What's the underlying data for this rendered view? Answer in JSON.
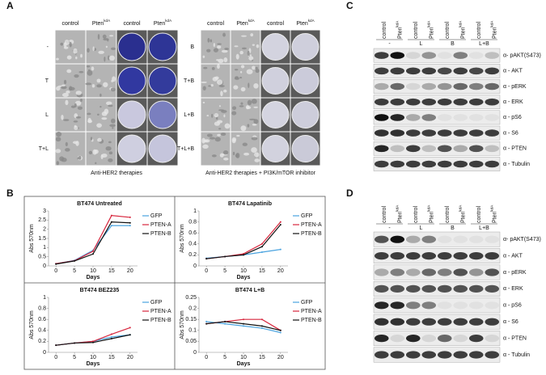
{
  "panel_labels": [
    "A",
    "B",
    "C",
    "D"
  ],
  "panel_a": {
    "groups": [
      {
        "columns": [
          {
            "text": "control"
          },
          {
            "text": "Pten",
            "sup": "kdA"
          },
          {
            "text": "control"
          },
          {
            "text": "Pten",
            "sup": "kdA"
          }
        ],
        "rows": [
          "-",
          "T",
          "L",
          "T+L"
        ],
        "caption": "Anti-HER2 therapies"
      },
      {
        "columns": [
          {
            "text": "control"
          },
          {
            "text": "Pten",
            "sup": "kdA"
          },
          {
            "text": "control"
          },
          {
            "text": "Pten",
            "sup": "kdA"
          }
        ],
        "rows": [
          "B",
          "T+B",
          "L+B",
          "T+L+B"
        ],
        "caption": "Anti-HER2 therapies + PI3K/mTOR inhibitor"
      }
    ]
  },
  "chart_data": [
    {
      "type": "line",
      "title": "BT474 Untreated",
      "x_label": "Days",
      "y_label": "Abs 570nm",
      "x": [
        0,
        5,
        10,
        15,
        20
      ],
      "xlim": [
        -2,
        22
      ],
      "xticks": [
        0,
        5,
        10,
        15,
        20
      ],
      "ylim": [
        0,
        3
      ],
      "yticks": [
        0,
        0.5,
        1,
        1.5,
        2,
        2.5,
        3
      ],
      "series": [
        {
          "name": "GFP",
          "color": "#4aa3df",
          "values": [
            0.12,
            0.3,
            0.85,
            2.2,
            2.2
          ]
        },
        {
          "name": "PTEN-A",
          "color": "#d7263d",
          "values": [
            0.12,
            0.28,
            0.8,
            2.75,
            2.65
          ]
        },
        {
          "name": "PTEN-B",
          "color": "#111111",
          "values": [
            0.1,
            0.27,
            0.65,
            2.4,
            2.35
          ]
        }
      ]
    },
    {
      "type": "line",
      "title": "BT474 Lapatinib",
      "x_label": "Days",
      "y_label": "Abs 570nm",
      "x": [
        0,
        5,
        10,
        15,
        20
      ],
      "xlim": [
        -2,
        22
      ],
      "xticks": [
        0,
        5,
        10,
        15,
        20
      ],
      "ylim": [
        0,
        1
      ],
      "yticks": [
        0,
        0.2,
        0.4,
        0.6,
        0.8,
        1
      ],
      "series": [
        {
          "name": "GFP",
          "color": "#4aa3df",
          "values": [
            0.14,
            0.17,
            0.2,
            0.25,
            0.3
          ]
        },
        {
          "name": "PTEN-A",
          "color": "#d7263d",
          "values": [
            0.13,
            0.17,
            0.22,
            0.4,
            0.8
          ]
        },
        {
          "name": "PTEN-B",
          "color": "#111111",
          "values": [
            0.13,
            0.17,
            0.2,
            0.35,
            0.75
          ]
        }
      ]
    },
    {
      "type": "line",
      "title": "BT474 BEZ235",
      "x_label": "Days",
      "y_label": "Abs 570nm",
      "x": [
        0,
        5,
        10,
        15,
        20
      ],
      "xlim": [
        -2,
        22
      ],
      "xticks": [
        0,
        5,
        10,
        15,
        20
      ],
      "ylim": [
        0,
        1
      ],
      "yticks": [
        0,
        0.2,
        0.4,
        0.6,
        0.8,
        1
      ],
      "series": [
        {
          "name": "GFP",
          "color": "#4aa3df",
          "values": [
            0.13,
            0.17,
            0.2,
            0.28,
            0.32
          ]
        },
        {
          "name": "PTEN-A",
          "color": "#d7263d",
          "values": [
            0.13,
            0.17,
            0.2,
            0.33,
            0.45
          ]
        },
        {
          "name": "PTEN-B",
          "color": "#111111",
          "values": [
            0.13,
            0.17,
            0.18,
            0.25,
            0.32
          ]
        }
      ]
    },
    {
      "type": "line",
      "title": "BT474 L+B",
      "x_label": "Days",
      "y_label": "Abs 570nm",
      "x": [
        0,
        5,
        10,
        15,
        20
      ],
      "xlim": [
        -2,
        22
      ],
      "xticks": [
        0,
        5,
        10,
        15,
        20
      ],
      "ylim": [
        0,
        0.25
      ],
      "yticks": [
        0,
        0.05,
        0.1,
        0.15,
        0.2,
        0.25
      ],
      "series": [
        {
          "name": "GFP",
          "color": "#4aa3df",
          "values": [
            0.14,
            0.13,
            0.12,
            0.11,
            0.09
          ]
        },
        {
          "name": "PTEN-A",
          "color": "#d7263d",
          "values": [
            0.13,
            0.14,
            0.15,
            0.15,
            0.1
          ]
        },
        {
          "name": "PTEN-B",
          "color": "#111111",
          "values": [
            0.13,
            0.14,
            0.13,
            0.12,
            0.1
          ]
        }
      ]
    }
  ],
  "panel_c": {
    "columns": [
      {
        "text": "control"
      },
      {
        "text": "Pten",
        "sup": "kdA"
      },
      {
        "text": "control"
      },
      {
        "text": "Pten",
        "sup": "kdA"
      },
      {
        "text": "control"
      },
      {
        "text": "Pten",
        "sup": "kdA"
      },
      {
        "text": "control"
      },
      {
        "text": "Pten",
        "sup": "kdA"
      }
    ],
    "groups": [
      "-",
      "L",
      "B",
      "L+B"
    ],
    "rows": [
      "α- pAKT(S473)",
      "α - AKT",
      "α - pERK",
      "α - ERK",
      "α - pS6",
      "α - S6",
      "α - PTEN",
      "α - Tubulin"
    ]
  },
  "panel_d": {
    "columns": [
      {
        "text": "control"
      },
      {
        "text": "Pten",
        "sup": "kdA"
      },
      {
        "text": "control"
      },
      {
        "text": "Pten",
        "sup": "kdA"
      },
      {
        "text": "control"
      },
      {
        "text": "Pten",
        "sup": "kdA"
      },
      {
        "text": "control"
      },
      {
        "text": "Pten",
        "sup": "kdA"
      }
    ],
    "groups": [
      "-",
      "L",
      "B",
      "L+B"
    ],
    "rows": [
      "α- pAKT(S473)",
      "α - AKT",
      "α - pERK",
      "α - ERK",
      "α - pS6",
      "α - S6",
      "α - PTEN",
      "α - Tubulin"
    ]
  }
}
